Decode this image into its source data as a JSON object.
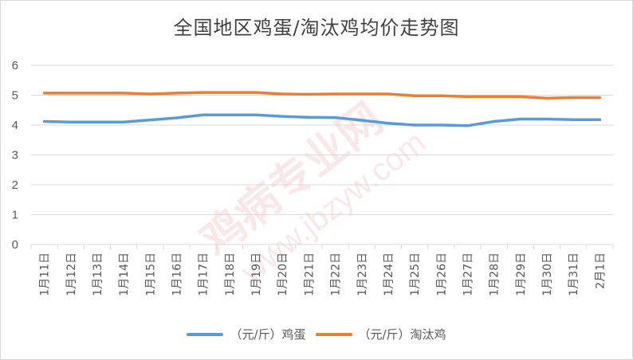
{
  "chart_data": {
    "type": "line",
    "title": "全国地区鸡蛋/淘汰鸡均价走势图",
    "categories": [
      "1月11日",
      "1月12日",
      "1月13日",
      "1月14日",
      "1月15日",
      "1月16日",
      "1月17日",
      "1月18日",
      "1月19日",
      "1月20日",
      "1月21日",
      "1月22日",
      "1月23日",
      "1月24日",
      "1月25日",
      "1月26日",
      "1月27日",
      "1月28日",
      "1月29日",
      "1月30日",
      "1月31日",
      "2月1日"
    ],
    "series": [
      {
        "name": "（元/斤）鸡蛋",
        "color": "#5b9bd5",
        "values": [
          4.12,
          4.1,
          4.1,
          4.1,
          4.17,
          4.24,
          4.34,
          4.34,
          4.34,
          4.29,
          4.26,
          4.25,
          4.16,
          4.06,
          4.0,
          4.0,
          3.98,
          4.12,
          4.2,
          4.2,
          4.18,
          4.18
        ]
      },
      {
        "name": "（元/斤）淘汰鸡",
        "color": "#ed7d31",
        "values": [
          5.07,
          5.07,
          5.07,
          5.07,
          5.04,
          5.07,
          5.09,
          5.09,
          5.09,
          5.04,
          5.03,
          5.04,
          5.04,
          5.04,
          4.98,
          4.98,
          4.95,
          4.95,
          4.95,
          4.9,
          4.92,
          4.92
        ]
      }
    ],
    "ylim": [
      0,
      6
    ],
    "yticks": [
      "0",
      "1",
      "2",
      "3",
      "4",
      "5",
      "6"
    ],
    "grid": true,
    "legend": "bottom"
  },
  "watermark": "鸡病专业网 www.jbzyw.com"
}
